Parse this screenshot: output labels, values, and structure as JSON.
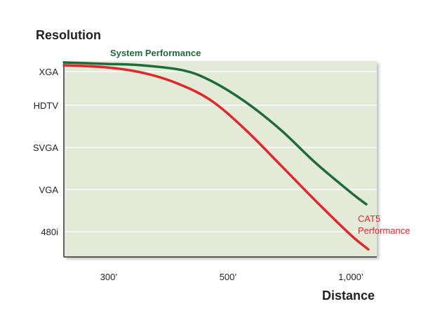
{
  "chart_data": {
    "type": "line",
    "ylabel": "Resolution",
    "xlabel": "Distance",
    "y_ticks": [
      {
        "label": "XGA",
        "level": 5
      },
      {
        "label": "HDTV",
        "level": 4
      },
      {
        "label": "SVGA",
        "level": 3
      },
      {
        "label": "VGA",
        "level": 2
      },
      {
        "label": "480i",
        "level": 1
      }
    ],
    "x_ticks": [
      {
        "label": "300’",
        "value": 300
      },
      {
        "label": "500’",
        "value": 500
      },
      {
        "label": "1,000’",
        "value": 1000
      }
    ],
    "xlim": [
      225,
      1106
    ],
    "ylim": [
      0.4,
      5.29
    ],
    "grid": true,
    "background_color": "#e3ebd8",
    "series": [
      {
        "name": "System Performance",
        "color": "#1d6b3a",
        "x": [
          225,
          294,
          353,
          424,
          471,
          571,
          714,
          857,
          1000,
          1063
        ],
        "y": [
          5.27,
          5.23,
          5.19,
          5.04,
          4.73,
          4.1,
          3.42,
          2.63,
          1.93,
          1.65
        ]
      },
      {
        "name": "CAT5 Performance",
        "name_lines": [
          "CAT5",
          "Performance"
        ],
        "color": "#e2262a",
        "x": [
          225,
          294,
          353,
          412,
          471,
          571,
          714,
          857,
          1000,
          1071
        ],
        "y": [
          5.19,
          5.13,
          4.98,
          4.67,
          4.15,
          3.42,
          2.58,
          1.73,
          0.92,
          0.58
        ]
      }
    ]
  }
}
